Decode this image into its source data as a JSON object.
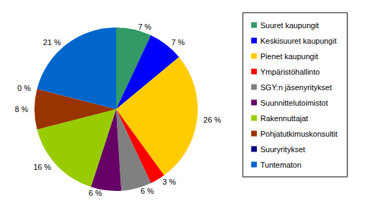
{
  "chart_data": {
    "type": "pie",
    "categories": [
      "Suuret kaupungit",
      "Keskisuuret kaupungit",
      "Pienet kaupungit",
      "Ympäristöhallinto",
      "SGY:n jäsenyritykset",
      "Suunnittelutoimistot",
      "Rakennuttajat",
      "Pohjatutkimuskonsultit",
      "Suuryritykset",
      "Tuntematon"
    ],
    "values": [
      7,
      7,
      26,
      3,
      6,
      6,
      16,
      8,
      0,
      21
    ],
    "value_labels": [
      "7 %",
      "7 %",
      "26 %",
      "3 %",
      "6 %",
      "6 %",
      "16 %",
      "8 %",
      "0 %",
      "21 %"
    ],
    "colors": [
      "#339966",
      "#0000ff",
      "#ffcc00",
      "#ff0000",
      "#808080",
      "#660066",
      "#99cc00",
      "#993300",
      "#000080",
      "#0066cc"
    ],
    "data_labels": true,
    "legend": "right"
  }
}
